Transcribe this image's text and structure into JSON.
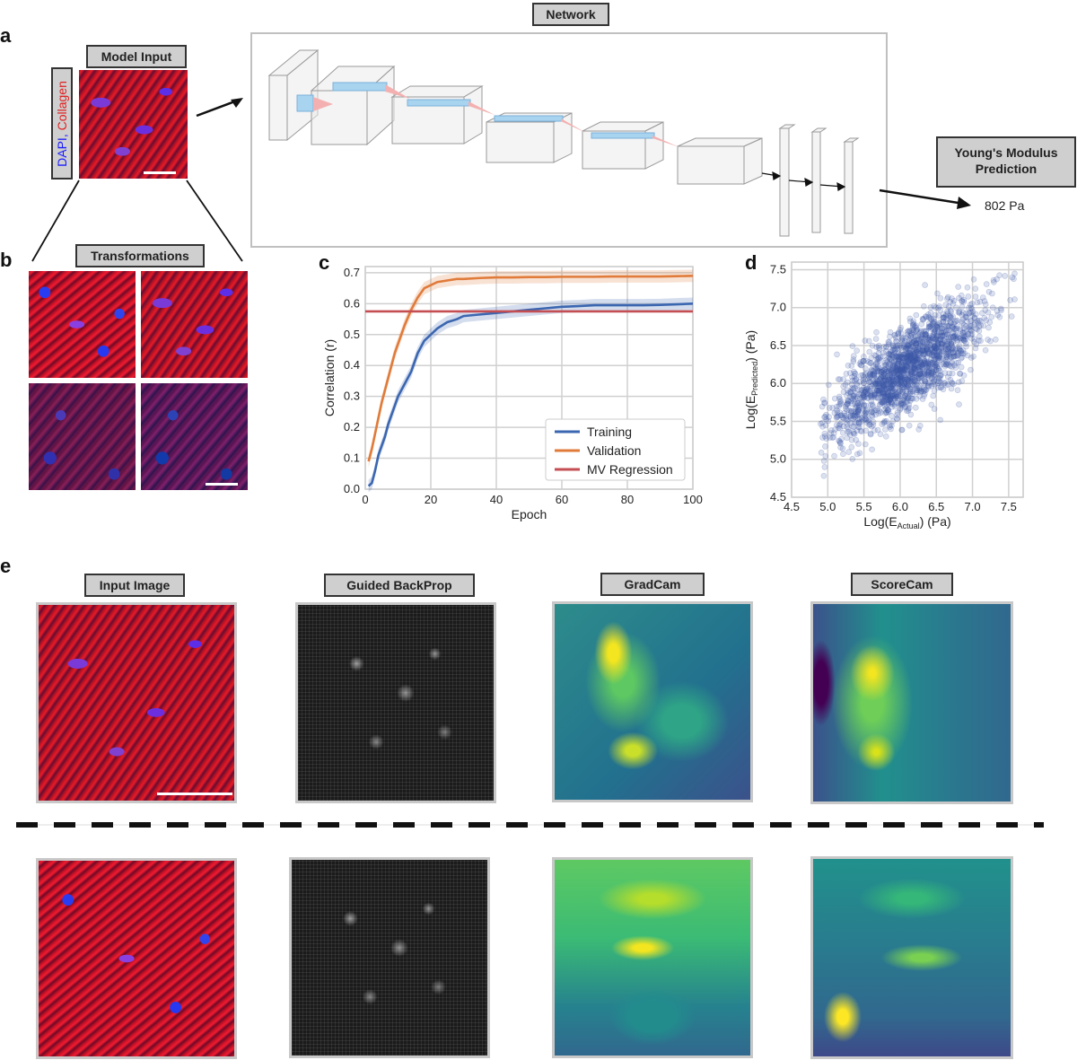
{
  "panel_letters": {
    "a": "a",
    "b": "b",
    "c": "c",
    "d": "d",
    "e": "e"
  },
  "panel_a": {
    "model_input_label": "Model Input",
    "stain_label_dapi": "DAPI",
    "stain_label_sep": ", ",
    "stain_label_collagen": "Collagen",
    "network_label": "Network",
    "output_label_line1": "Young's Modulus",
    "output_label_line2": "Prediction",
    "prediction_value": "802 Pa",
    "colors": {
      "dapi": "#1a1aff",
      "collagen": "#e02020"
    }
  },
  "panel_b": {
    "label": "Transformations"
  },
  "panel_e": {
    "column_labels": [
      "Input Image",
      "Guided BackProp",
      "GradCam",
      "ScoreCam"
    ]
  },
  "chart_data": [
    {
      "id": "c",
      "type": "line",
      "xlabel": "Epoch",
      "ylabel": "Correlation (r)",
      "xlim": [
        0,
        100
      ],
      "ylim": [
        0.0,
        0.72
      ],
      "xticks": [
        0,
        20,
        40,
        60,
        80,
        100
      ],
      "yticks": [
        0.0,
        0.1,
        0.2,
        0.3,
        0.4,
        0.5,
        0.6,
        0.7
      ],
      "grid": true,
      "legend_position": "lower-right",
      "series": [
        {
          "name": "Training",
          "color": "#3b66b0",
          "x": [
            1,
            2,
            3,
            4,
            5,
            6,
            7,
            8,
            9,
            10,
            12,
            14,
            16,
            18,
            20,
            22,
            25,
            28,
            30,
            35,
            40,
            45,
            50,
            55,
            60,
            65,
            70,
            75,
            80,
            85,
            90,
            95,
            100
          ],
          "y": [
            0.01,
            0.02,
            0.06,
            0.11,
            0.14,
            0.17,
            0.21,
            0.24,
            0.27,
            0.3,
            0.34,
            0.38,
            0.44,
            0.48,
            0.5,
            0.52,
            0.54,
            0.55,
            0.56,
            0.565,
            0.57,
            0.575,
            0.58,
            0.585,
            0.59,
            0.592,
            0.595,
            0.595,
            0.595,
            0.595,
            0.596,
            0.598,
            0.6
          ]
        },
        {
          "name": "Validation",
          "color": "#e07b3a",
          "x": [
            1,
            2,
            3,
            4,
            5,
            6,
            7,
            8,
            9,
            10,
            12,
            14,
            16,
            18,
            20,
            22,
            25,
            28,
            30,
            35,
            40,
            45,
            50,
            55,
            60,
            65,
            70,
            75,
            80,
            85,
            90,
            95,
            100
          ],
          "y": [
            0.09,
            0.13,
            0.18,
            0.23,
            0.28,
            0.32,
            0.36,
            0.4,
            0.44,
            0.47,
            0.53,
            0.58,
            0.62,
            0.65,
            0.66,
            0.67,
            0.675,
            0.68,
            0.68,
            0.683,
            0.685,
            0.685,
            0.686,
            0.686,
            0.687,
            0.687,
            0.687,
            0.688,
            0.688,
            0.688,
            0.688,
            0.689,
            0.69
          ]
        },
        {
          "name": "MV Regression",
          "color": "#c44e52",
          "x": [
            0,
            100
          ],
          "y": [
            0.575,
            0.575
          ]
        }
      ]
    },
    {
      "id": "d",
      "type": "scatter",
      "xlabel": "Log(E_Actual) (Pa)",
      "xlabel_main": "Log(E",
      "xlabel_sub": "Actual",
      "xlabel_tail": ") (Pa)",
      "ylabel_main": "Log(E",
      "ylabel_sub": "Predicted",
      "ylabel_tail": ") (Pa)",
      "xlim": [
        4.5,
        7.7
      ],
      "ylim": [
        4.5,
        7.6
      ],
      "xticks": [
        4.5,
        5.0,
        5.5,
        6.0,
        6.5,
        7.0,
        7.5
      ],
      "yticks": [
        4.5,
        5.0,
        5.5,
        6.0,
        6.5,
        7.0,
        7.5
      ],
      "grid": true,
      "point_color": "#3b56a8",
      "trend": {
        "x_range": [
          4.9,
          7.6
        ],
        "slope": 0.62,
        "intercept": 2.4,
        "y_spread": 0.28
      },
      "n_points": 1800
    }
  ]
}
